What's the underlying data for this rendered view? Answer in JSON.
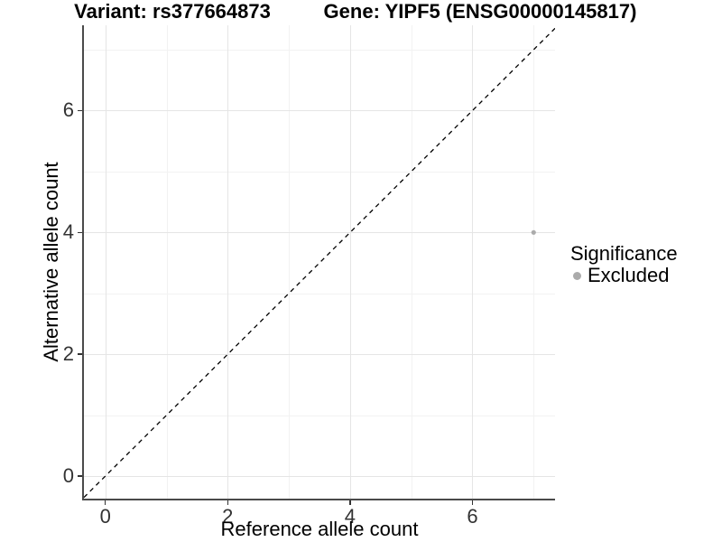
{
  "page": {
    "title_left": "Variant: rs377664873",
    "title_right": "Gene: YIPF5 (ENSG00000145817)"
  },
  "chart_data": {
    "type": "scatter",
    "title_left": "Variant: rs377664873",
    "title_right": "Gene: YIPF5 (ENSG00000145817)",
    "xlabel": "Reference allele count",
    "ylabel": "Alternative allele count",
    "xlim": [
      -0.35,
      7.35
    ],
    "ylim": [
      -0.37,
      7.4
    ],
    "x_ticks": [
      0,
      2,
      4,
      6
    ],
    "x_minor_gridlines": [
      1,
      3,
      5,
      7
    ],
    "y_ticks": [
      0,
      2,
      4,
      6
    ],
    "y_minor_gridlines": [
      1,
      3,
      5,
      7
    ],
    "series": [
      {
        "name": "Excluded",
        "color": "#ababab",
        "point_radius": 2.6,
        "points": [
          {
            "x": 7,
            "y": 4
          }
        ]
      }
    ],
    "reference_line": {
      "equation": "y = x",
      "style": "dashed",
      "color": "#000000"
    },
    "legend": {
      "title": "Significance",
      "position": "right",
      "entries": [
        {
          "label": "Excluded",
          "color": "#ababab"
        }
      ]
    },
    "grid": "major+minor",
    "colors": {
      "grid_major": "#e5e5e5",
      "grid_minor": "#f2f2f2",
      "axis_line": "#4a4a4a",
      "tick_text": "#333333",
      "background": "#ffffff"
    }
  }
}
